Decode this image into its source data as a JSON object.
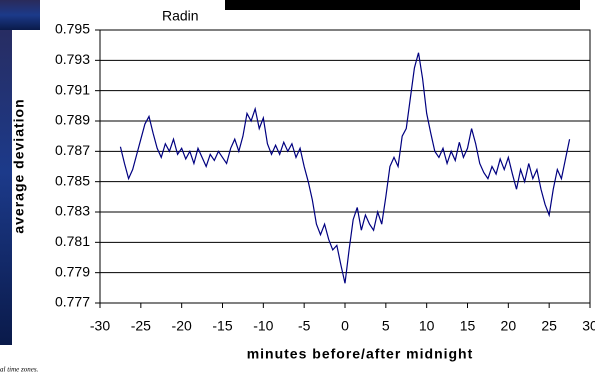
{
  "chart_data": {
    "type": "line",
    "title": "Radin",
    "xlabel": "minutes before/after midnight",
    "ylabel": "average deviation",
    "footnote": "al time zones.",
    "x": [
      -27.5,
      -27,
      -26.5,
      -26,
      -25.5,
      -25,
      -24.5,
      -24,
      -23.5,
      -23,
      -22.5,
      -22,
      -21.5,
      -21,
      -20.5,
      -20,
      -19.5,
      -19,
      -18.5,
      -18,
      -17.5,
      -17,
      -16.5,
      -16,
      -15.5,
      -15,
      -14.5,
      -14,
      -13.5,
      -13,
      -12.5,
      -12,
      -11.5,
      -11,
      -10.5,
      -10,
      -9.5,
      -9,
      -8.5,
      -8,
      -7.5,
      -7,
      -6.5,
      -6,
      -5.5,
      -5,
      -4.5,
      -4,
      -3.5,
      -3,
      -2.5,
      -2,
      -1.5,
      -1,
      -0.5,
      0,
      0.5,
      1,
      1.5,
      2,
      2.5,
      3,
      3.5,
      4,
      4.5,
      5,
      5.5,
      6,
      6.5,
      7,
      7.5,
      8,
      8.5,
      9,
      9.5,
      10,
      10.5,
      11,
      11.5,
      12,
      12.5,
      13,
      13.5,
      14,
      14.5,
      15,
      15.5,
      16,
      16.5,
      17,
      17.5,
      18,
      18.5,
      19,
      19.5,
      20,
      20.5,
      21,
      21.5,
      22,
      22.5,
      23,
      23.5,
      24,
      24.5,
      25,
      25.5,
      26,
      26.5,
      27,
      27.5
    ],
    "series": [
      {
        "name": "Radin",
        "color": "#000080",
        "values": [
          0.7873,
          0.7862,
          0.7852,
          0.7858,
          0.7868,
          0.7878,
          0.7888,
          0.7893,
          0.7882,
          0.7872,
          0.7866,
          0.7875,
          0.787,
          0.7878,
          0.7868,
          0.7872,
          0.7865,
          0.787,
          0.7862,
          0.7872,
          0.7866,
          0.786,
          0.7868,
          0.7864,
          0.787,
          0.7866,
          0.7862,
          0.7872,
          0.7878,
          0.787,
          0.788,
          0.7895,
          0.789,
          0.7898,
          0.7885,
          0.7892,
          0.7875,
          0.7868,
          0.7874,
          0.7868,
          0.7876,
          0.787,
          0.7875,
          0.7866,
          0.7872,
          0.786,
          0.785,
          0.7838,
          0.7822,
          0.7815,
          0.7822,
          0.7812,
          0.7805,
          0.7808,
          0.7795,
          0.7783,
          0.7805,
          0.7825,
          0.7833,
          0.7818,
          0.7828,
          0.7822,
          0.7818,
          0.783,
          0.7822,
          0.784,
          0.786,
          0.7866,
          0.786,
          0.788,
          0.7885,
          0.7905,
          0.7925,
          0.7935,
          0.7918,
          0.7895,
          0.7882,
          0.787,
          0.7866,
          0.7872,
          0.7862,
          0.787,
          0.7864,
          0.7876,
          0.7866,
          0.7872,
          0.7885,
          0.7875,
          0.7862,
          0.7856,
          0.7852,
          0.786,
          0.7855,
          0.7865,
          0.7858,
          0.7866,
          0.7855,
          0.7845,
          0.7858,
          0.785,
          0.7862,
          0.7852,
          0.7858,
          0.7845,
          0.7835,
          0.7828,
          0.7845,
          0.7858,
          0.7852,
          0.7865,
          0.7878
        ]
      }
    ],
    "xlim": [
      -30,
      30
    ],
    "xticks": [
      -30,
      -25,
      -20,
      -15,
      -10,
      -5,
      0,
      5,
      10,
      15,
      20,
      25,
      30
    ],
    "ylim": [
      0.777,
      0.795
    ],
    "yticks": [
      0.777,
      0.779,
      0.781,
      0.783,
      0.785,
      0.787,
      0.789,
      0.791,
      0.793,
      0.795
    ],
    "grid": true
  }
}
